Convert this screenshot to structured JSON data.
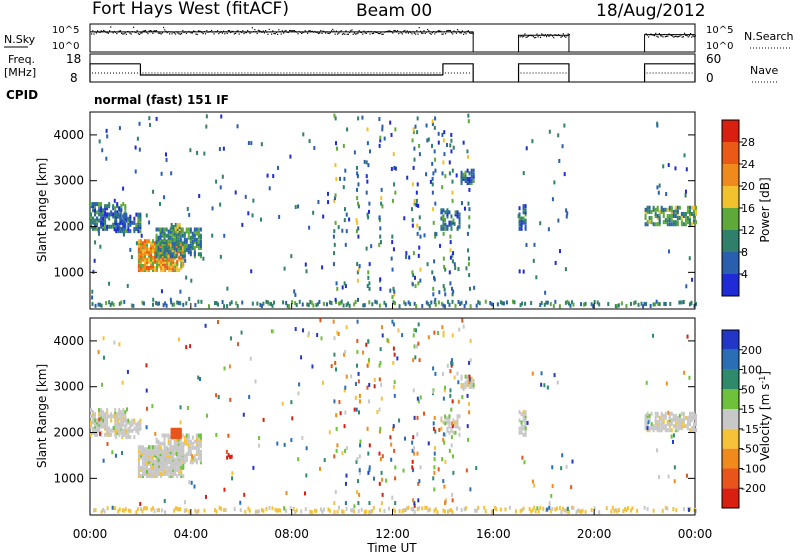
{
  "header": {
    "station": "Fort Hays West (fitACF)",
    "beam": "Beam 00",
    "date": "18/Aug/2012",
    "cpid_label": "CPID",
    "cpid_value": "normal (fast) 151 IF"
  },
  "chart_data": [
    {
      "type": "line",
      "id": "noise",
      "left_label": "N.Sky",
      "right_label": "N.Search",
      "left_ticks": [
        "10^5",
        "10^0"
      ],
      "right_ticks": [
        "10^5",
        "10^0"
      ],
      "segments": [
        {
          "x_start": 0.0,
          "x_end": 15.2,
          "level": 0.72
        },
        {
          "x_start": 17.0,
          "x_end": 19.0,
          "level": 0.6
        },
        {
          "x_start": 22.0,
          "x_end": 24.0,
          "level": 0.62
        }
      ]
    },
    {
      "type": "line",
      "id": "freq",
      "left_label": "Freq.",
      "left_unit": "[MHz]",
      "right_label": "Nave",
      "left_ticks": [
        "18",
        "8"
      ],
      "right_ticks": [
        "60",
        "0"
      ],
      "freq_steps": [
        {
          "x_start": 0.0,
          "x_end": 2.0,
          "value": 14.5
        },
        {
          "x_start": 2.0,
          "x_end": 14.0,
          "value": 10.5
        },
        {
          "x_start": 14.0,
          "x_end": 15.2,
          "value": 14.5
        },
        {
          "x_start": 17.0,
          "x_end": 19.0,
          "value": 14.5
        },
        {
          "x_start": 22.0,
          "x_end": 24.0,
          "value": 14.5
        }
      ]
    },
    {
      "type": "heatmap",
      "id": "power",
      "ylabel": "Slant Range [km]",
      "ylim": [
        200,
        4500
      ],
      "yticks": [
        "1000",
        "2000",
        "3000",
        "4000"
      ],
      "colorbar_label": "Power [dB]",
      "colorbar_ticks": [
        "4",
        "8",
        "12",
        "16",
        "20",
        "24",
        "28"
      ],
      "colors": [
        "#1e2bd6",
        "#2a5fb0",
        "#2f7f6a",
        "#5fa83a",
        "#f2c12e",
        "#f08a1c",
        "#e85a16",
        "#d81f10"
      ]
    },
    {
      "type": "heatmap",
      "id": "velocity",
      "xlabel": "Time UT",
      "ylabel": "Slant Range [km]",
      "xlim": [
        0,
        24
      ],
      "xticks": [
        "00:00",
        "04:00",
        "08:00",
        "12:00",
        "16:00",
        "20:00",
        "00:00"
      ],
      "ylim": [
        200,
        4500
      ],
      "yticks": [
        "1000",
        "2000",
        "3000",
        "4000"
      ],
      "colorbar_label": "Velocity [m s",
      "colorbar_exponent": "-1",
      "colorbar_label_end": "]",
      "colorbar_ticks": [
        "200",
        "100",
        "50",
        "15",
        "-15",
        "-50",
        "-100",
        "-200"
      ],
      "colors": [
        "#2236c8",
        "#2a6fb5",
        "#2e8a6a",
        "#6ec13a",
        "#c8c8c8",
        "#f5c23a",
        "#f08a1c",
        "#e8541a",
        "#d81f10"
      ]
    }
  ]
}
